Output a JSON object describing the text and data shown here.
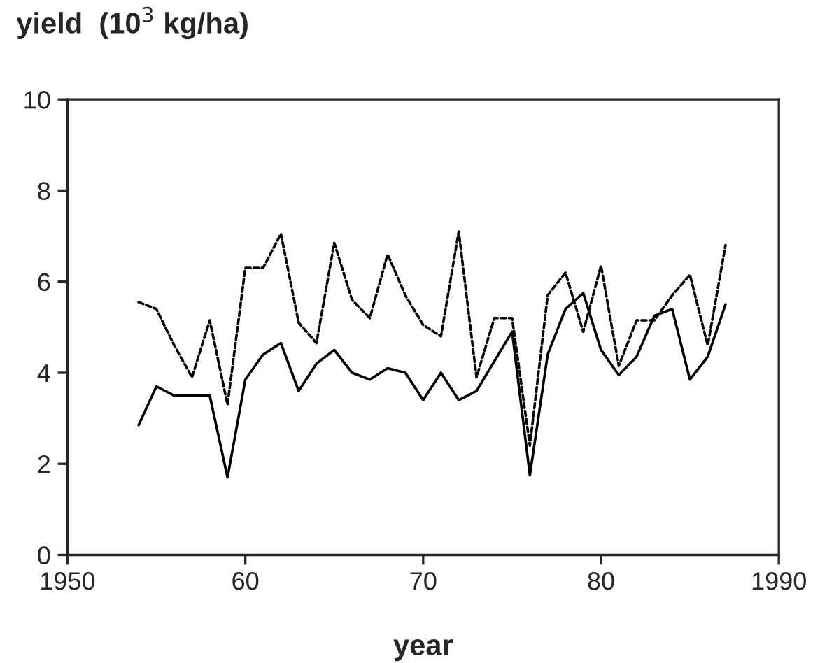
{
  "chart_data": {
    "type": "line",
    "x": [
      1954,
      1955,
      1956,
      1957,
      1958,
      1959,
      1960,
      1961,
      1962,
      1963,
      1964,
      1965,
      1966,
      1967,
      1968,
      1969,
      1970,
      1971,
      1972,
      1973,
      1974,
      1975,
      1976,
      1977,
      1978,
      1979,
      1980,
      1981,
      1982,
      1983,
      1984,
      1985,
      1986,
      1987
    ],
    "series": [
      {
        "color": "#000000",
        "line_style": "solid",
        "values": [
          2.85,
          3.7,
          3.5,
          3.5,
          3.5,
          1.7,
          3.85,
          4.4,
          4.65,
          3.6,
          4.2,
          4.5,
          4.0,
          3.85,
          4.1,
          4.0,
          3.4,
          4.0,
          3.4,
          3.6,
          4.25,
          4.9,
          1.75,
          4.4,
          5.4,
          5.75,
          4.5,
          3.95,
          4.35,
          5.25,
          5.4,
          3.85,
          4.35,
          5.5
        ]
      },
      {
        "color": "#000000",
        "line_style": "dashed",
        "values": [
          5.55,
          5.4,
          4.6,
          3.9,
          5.15,
          3.3,
          6.3,
          6.3,
          7.05,
          5.1,
          4.65,
          6.85,
          5.6,
          5.2,
          6.6,
          5.7,
          5.05,
          4.8,
          7.1,
          3.9,
          5.2,
          5.2,
          2.4,
          5.7,
          6.2,
          4.9,
          6.35,
          4.15,
          5.15,
          5.15,
          5.7,
          6.15,
          4.6,
          6.8
        ]
      }
    ],
    "xlabel": "year",
    "ylabel": "yield  (10$^{3}$ kg/ha)",
    "xlim": [
      1950,
      1990
    ],
    "xticks": [
      1950,
      {
        "value": 1960,
        "label": "60"
      },
      {
        "value": 1970,
        "label": "70"
      },
      {
        "value": 1980,
        "label": "80"
      },
      1990
    ],
    "ylim": [
      0,
      10
    ],
    "yticks": [
      0,
      2,
      4,
      6,
      8,
      10
    ],
    "grid": false,
    "marker": "none"
  }
}
